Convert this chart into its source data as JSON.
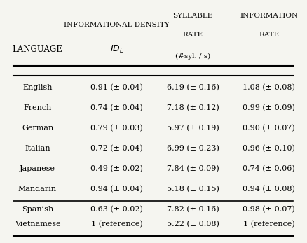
{
  "languages": [
    "English",
    "French",
    "German",
    "Italian",
    "Japanese",
    "Mandarin",
    "Spanish",
    "Vietnamese"
  ],
  "id_l": [
    "0.91 (± 0.04)",
    "0.74 (± 0.04)",
    "0.79 (± 0.03)",
    "0.72 (± 0.04)",
    "0.49 (± 0.02)",
    "0.94 (± 0.04)",
    "0.63 (± 0.02)",
    "1 (reference)"
  ],
  "syl_rate": [
    "6.19 (± 0.16)",
    "7.18 (± 0.12)",
    "5.97 (± 0.19)",
    "6.99 (± 0.23)",
    "7.84 (± 0.09)",
    "5.18 (± 0.15)",
    "7.82 (± 0.16)",
    "5.22 (± 0.08)"
  ],
  "info_rate": [
    "1.08 (± 0.08)",
    "0.99 (± 0.09)",
    "0.90 (± 0.07)",
    "0.96 (± 0.10)",
    "0.74 (± 0.06)",
    "0.94 (± 0.08)",
    "0.98 (± 0.07)",
    "1 (reference)"
  ],
  "header_col1": "Language",
  "header_col2_line1": "Informational Density",
  "header_col2_line2": "IDₗ",
  "header_col3_line1": "Syllable",
  "header_col3_line2": "Rate",
  "header_col3_line3": "(#syl. / s)",
  "header_col4_line1": "Information",
  "header_col4_line2": "Rate",
  "bg_color": "#f5f5f0",
  "fig_bg": "#f5f5f0"
}
